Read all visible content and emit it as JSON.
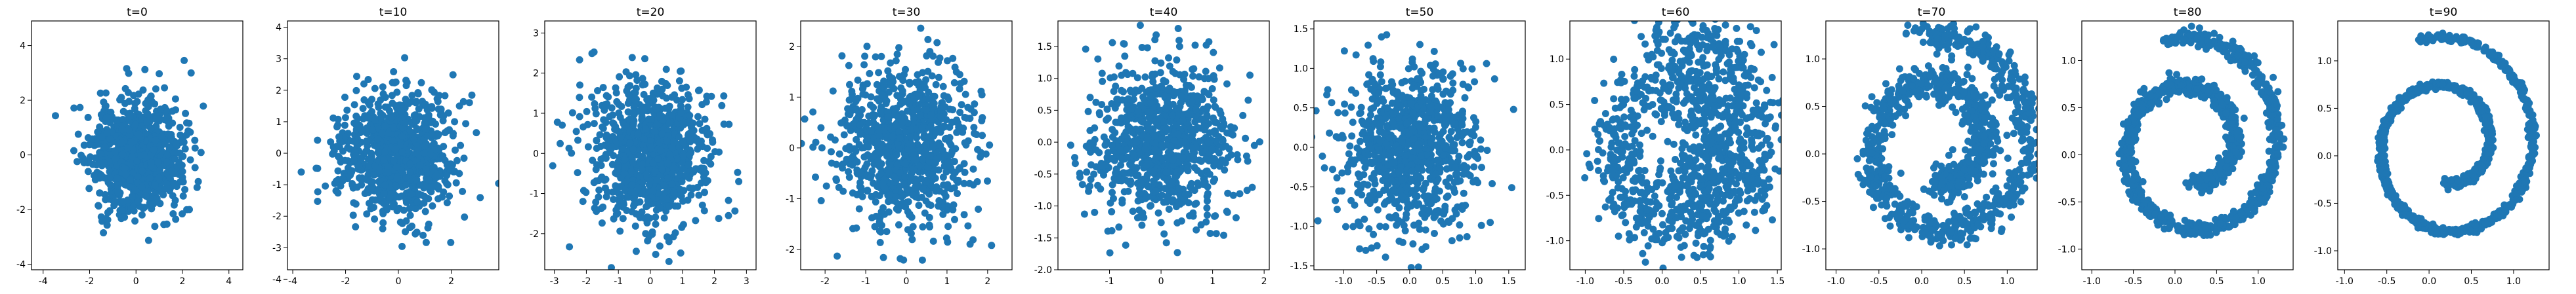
{
  "figure": {
    "marker_color": "#1f77b4",
    "axes_color": "#000000",
    "background": "#ffffff"
  },
  "chart_data": [
    {
      "type": "scatter",
      "title": "t=0",
      "xlim": [
        -4.5,
        4.6
      ],
      "ylim": [
        -4.2,
        4.9
      ],
      "xticks": [
        "-4",
        "-2",
        "0",
        "2",
        "4"
      ],
      "xtick_values": [
        -4,
        -2,
        0,
        2,
        4
      ],
      "yticks": [
        "-4",
        "-2",
        "0",
        "2",
        "4"
      ],
      "ytick_values": [
        -4,
        -2,
        0,
        2,
        4
      ],
      "shape": "gaussian",
      "sigma": [
        1.0,
        1.0
      ],
      "n_points": 900,
      "seed": 11
    },
    {
      "type": "scatter",
      "title": "t=10",
      "xlim": [
        -4.2,
        3.8
      ],
      "ylim": [
        -3.7,
        4.2
      ],
      "xticks": [
        "-4",
        "-2",
        "0",
        "2"
      ],
      "xtick_values": [
        -4,
        -2,
        0,
        2
      ],
      "yticks": [
        "-4",
        "-3",
        "-2",
        "-1",
        "0",
        "1",
        "2",
        "3",
        "4"
      ],
      "ytick_values": [
        -4,
        -3,
        -2,
        -1,
        0,
        1,
        2,
        3,
        4
      ],
      "shape": "gaussian",
      "sigma": [
        1.0,
        0.95
      ],
      "n_points": 900,
      "seed": 12
    },
    {
      "type": "scatter",
      "title": "t=20",
      "xlim": [
        -3.3,
        3.3
      ],
      "ylim": [
        -2.9,
        3.3
      ],
      "xticks": [
        "-3",
        "-2",
        "-1",
        "0",
        "1",
        "2",
        "3"
      ],
      "xtick_values": [
        -3,
        -2,
        -1,
        0,
        1,
        2,
        3
      ],
      "yticks": [
        "-2",
        "-1",
        "0",
        "1",
        "2",
        "3"
      ],
      "ytick_values": [
        -2,
        -1,
        0,
        1,
        2,
        3
      ],
      "shape": "gaussian",
      "sigma": [
        0.95,
        0.88
      ],
      "n_points": 900,
      "seed": 13
    },
    {
      "type": "scatter",
      "title": "t=30",
      "xlim": [
        -2.6,
        2.6
      ],
      "ylim": [
        -2.4,
        2.5
      ],
      "xticks": [
        "-2",
        "-1",
        "0",
        "1",
        "2"
      ],
      "xtick_values": [
        -2,
        -1,
        0,
        1,
        2
      ],
      "yticks": [
        "-2",
        "-1",
        "0",
        "1",
        "2"
      ],
      "ytick_values": [
        -2,
        -1,
        0,
        1,
        2
      ],
      "shape": "gaussian",
      "sigma": [
        0.85,
        0.8
      ],
      "n_points": 900,
      "seed": 14
    },
    {
      "type": "scatter",
      "title": "t=40",
      "xlim": [
        -2.0,
        2.1
      ],
      "ylim": [
        -2.0,
        1.9
      ],
      "xticks": [
        "-1",
        "0",
        "1",
        "2"
      ],
      "xtick_values": [
        -1,
        0,
        1,
        2
      ],
      "yticks": [
        "-2.0",
        "-1.5",
        "-1.0",
        "-0.5",
        "0.0",
        "0.5",
        "1.0",
        "1.5"
      ],
      "ytick_values": [
        -2,
        -1.5,
        -1,
        -0.5,
        0,
        0.5,
        1,
        1.5
      ],
      "shape": "gaussian",
      "sigma": [
        0.68,
        0.62
      ],
      "n_points": 900,
      "seed": 15
    },
    {
      "type": "scatter",
      "title": "t=50",
      "xlim": [
        -1.45,
        1.75
      ],
      "ylim": [
        -1.55,
        1.6
      ],
      "xticks": [
        "-1.0",
        "-0.5",
        "0.0",
        "0.5",
        "1.0",
        "1.5"
      ],
      "xtick_values": [
        -1,
        -0.5,
        0,
        0.5,
        1,
        1.5
      ],
      "yticks": [
        "-1.5",
        "-1.0",
        "-0.5",
        "0.0",
        "0.5",
        "1.0",
        "1.5"
      ],
      "ytick_values": [
        -1.5,
        -1,
        -0.5,
        0,
        0.5,
        1,
        1.5
      ],
      "shape": "gaussian",
      "sigma": [
        0.5,
        0.5
      ],
      "n_points": 900,
      "seed": 16
    },
    {
      "type": "scatter",
      "title": "t=60",
      "xlim": [
        -1.2,
        1.55
      ],
      "ylim": [
        -1.32,
        1.42
      ],
      "xticks": [
        "-1.0",
        "-0.5",
        "0.0",
        "0.5",
        "1.0",
        "1.5"
      ],
      "xtick_values": [
        -1,
        -0.5,
        0,
        0.5,
        1,
        1.5
      ],
      "yticks": [
        "-1.0",
        "-0.5",
        "0.0",
        "0.5",
        "1.0"
      ],
      "ytick_values": [
        -1,
        -0.5,
        0,
        0.5,
        1
      ],
      "shape": "spiral",
      "noise": 0.2,
      "n_points": 1100,
      "seed": 17
    },
    {
      "type": "scatter",
      "title": "t=70",
      "xlim": [
        -1.12,
        1.35
      ],
      "ylim": [
        -1.22,
        1.4
      ],
      "xticks": [
        "-1.0",
        "-0.5",
        "0.0",
        "0.5",
        "1.0"
      ],
      "xtick_values": [
        -1,
        -0.5,
        0,
        0.5,
        1
      ],
      "yticks": [
        "-1.0",
        "-0.5",
        "0.0",
        "0.5",
        "1.0"
      ],
      "ytick_values": [
        -1,
        -0.5,
        0,
        0.5,
        1
      ],
      "shape": "spiral",
      "noise": 0.085,
      "n_points": 1100,
      "seed": 18
    },
    {
      "type": "scatter",
      "title": "t=80",
      "xlim": [
        -1.12,
        1.42
      ],
      "ylim": [
        -1.22,
        1.42
      ],
      "xticks": [
        "-1.0",
        "-0.5",
        "0.0",
        "0.5",
        "1.0"
      ],
      "xtick_values": [
        -1,
        -0.5,
        0,
        0.5,
        1
      ],
      "yticks": [
        "-1.0",
        "-0.5",
        "0.0",
        "0.5",
        "1.0"
      ],
      "ytick_values": [
        -1,
        -0.5,
        0,
        0.5,
        1
      ],
      "shape": "spiral",
      "noise": 0.04,
      "n_points": 1100,
      "seed": 19
    },
    {
      "type": "scatter",
      "title": "t=90",
      "xlim": [
        -1.08,
        1.42
      ],
      "ylim": [
        -1.2,
        1.42
      ],
      "xticks": [
        "-1.0",
        "-0.5",
        "0.0",
        "0.5",
        "1.0"
      ],
      "xtick_values": [
        -1,
        -0.5,
        0,
        0.5,
        1
      ],
      "yticks": [
        "-1.0",
        "-0.5",
        "0.0",
        "0.5",
        "1.0"
      ],
      "ytick_values": [
        -1,
        -0.5,
        0,
        0.5,
        1
      ],
      "shape": "spiral",
      "noise": 0.02,
      "n_points": 1100,
      "seed": 20
    }
  ]
}
